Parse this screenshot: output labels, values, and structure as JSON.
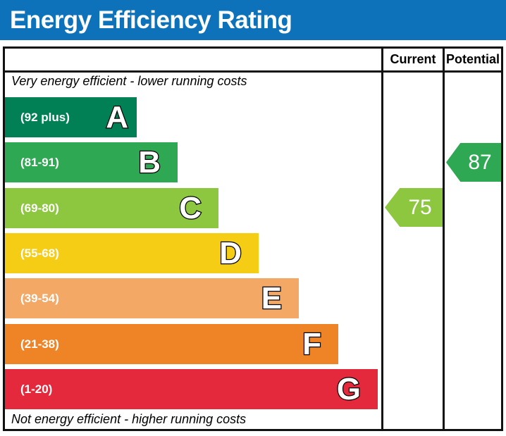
{
  "header": {
    "title": "Energy Efficiency Rating",
    "background": "#0d72b9"
  },
  "columns": {
    "current_label": "Current",
    "potential_label": "Potential"
  },
  "notes": {
    "top": "Very energy efficient - lower running costs",
    "bottom": "Not energy efficient - higher running costs"
  },
  "chart_data": {
    "type": "bar",
    "title": "Energy Efficiency Rating",
    "bands": [
      {
        "letter": "A",
        "range_label": "(92 plus)",
        "color": "#008054"
      },
      {
        "letter": "B",
        "range_label": "(81-91)",
        "color": "#2ea852"
      },
      {
        "letter": "C",
        "range_label": "(69-80)",
        "color": "#8dc63f"
      },
      {
        "letter": "D",
        "range_label": "(55-68)",
        "color": "#f5cd15"
      },
      {
        "letter": "E",
        "range_label": "(39-54)",
        "color": "#f3a865"
      },
      {
        "letter": "F",
        "range_label": "(21-38)",
        "color": "#ef8426"
      },
      {
        "letter": "G",
        "range_label": "(1-20)",
        "color": "#e4293c"
      }
    ],
    "markers": {
      "current": {
        "value": 75,
        "band": "C",
        "color": "#8dc63f"
      },
      "potential": {
        "value": 87,
        "band": "B",
        "color": "#2ea852"
      }
    }
  }
}
